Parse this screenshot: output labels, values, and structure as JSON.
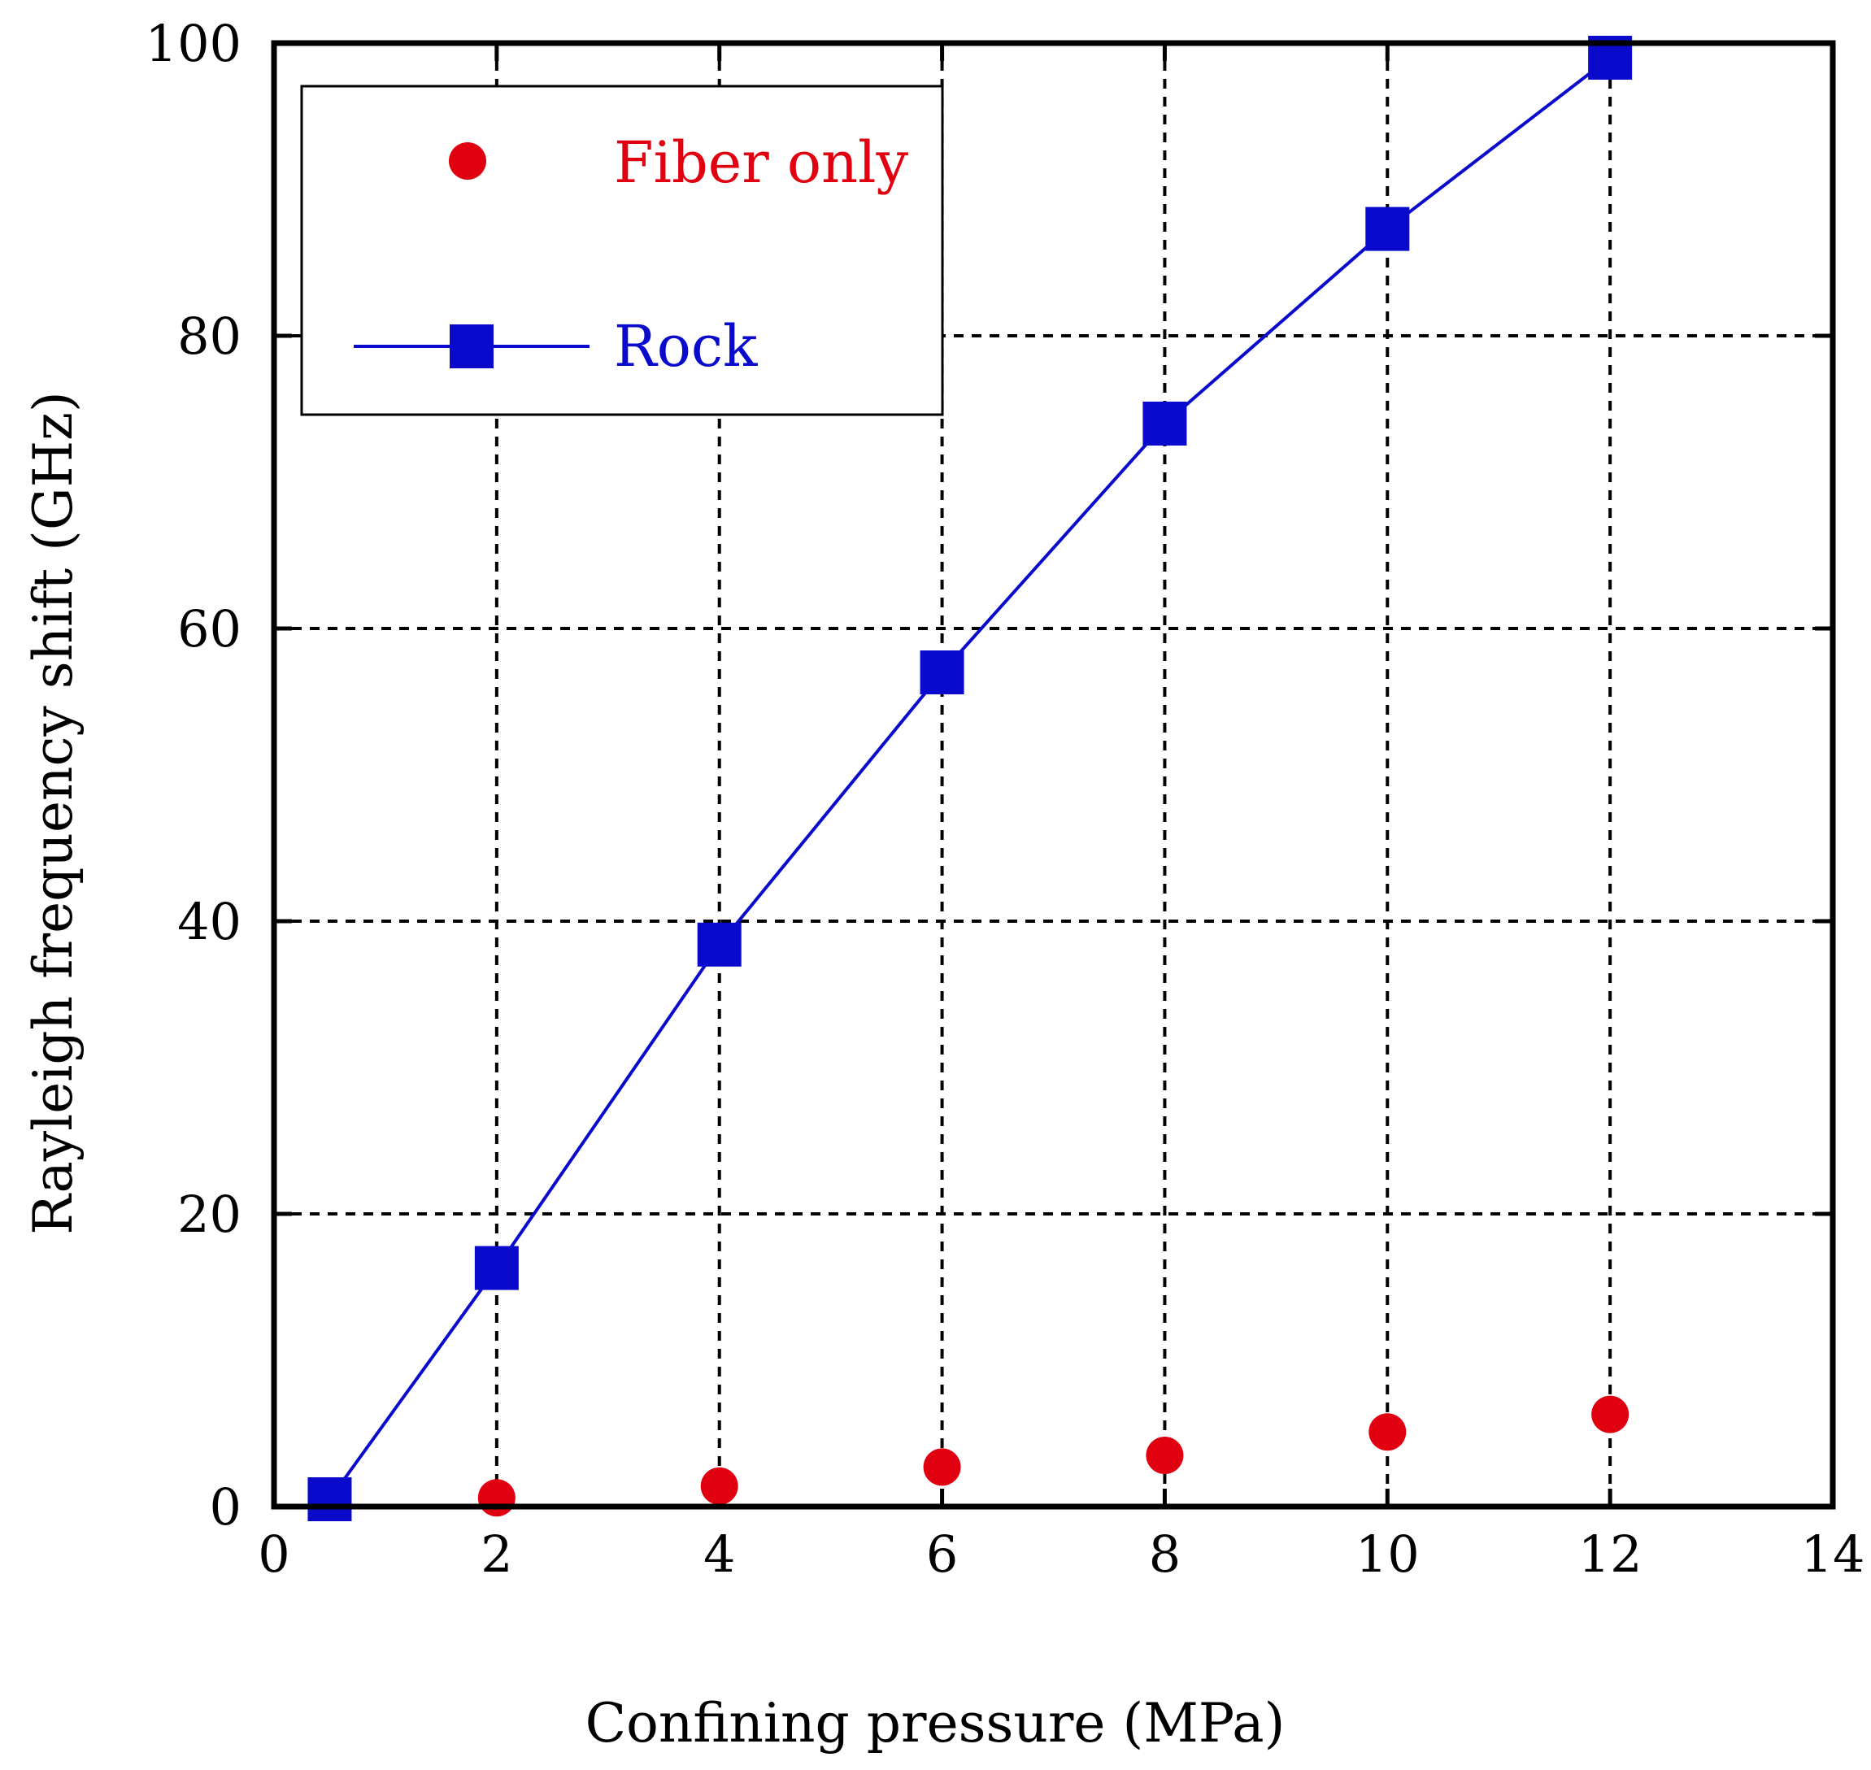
{
  "chart_data": {
    "type": "line",
    "xlabel": "Confining pressure (MPa)",
    "ylabel": "Rayleigh frequency shift (GHz)",
    "xlim": [
      0,
      14
    ],
    "ylim": [
      0,
      100
    ],
    "xticks": [
      0,
      2,
      4,
      6,
      8,
      10,
      12,
      14
    ],
    "yticks": [
      0,
      20,
      40,
      60,
      80,
      100
    ],
    "grid": true,
    "legend_position": "top-left",
    "series": [
      {
        "name": "Fiber only",
        "marker": "circle",
        "line": false,
        "color": "#e0000f",
        "x": [
          2,
          4,
          6,
          8,
          10,
          12
        ],
        "y": [
          0.6,
          1.4,
          2.7,
          3.5,
          5.1,
          6.3
        ]
      },
      {
        "name": "Rock",
        "marker": "square",
        "line": true,
        "color": "#0a0acc",
        "x": [
          0.5,
          2,
          4,
          6,
          8,
          10,
          12
        ],
        "y": [
          0.5,
          16.3,
          38.4,
          57.0,
          74.0,
          87.3,
          99.0
        ]
      }
    ]
  }
}
